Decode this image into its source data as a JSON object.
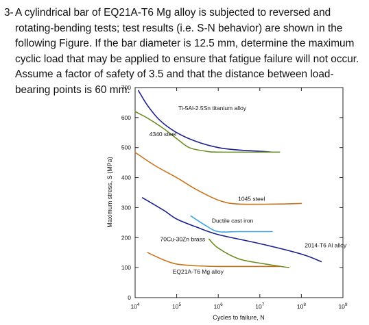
{
  "problem": {
    "number": "3-",
    "text": "A cylindrical bar of EQ21A-T6 Mg alloy is subjected to reversed and rotating-bending tests; test results (i.e. S-N behavior) are shown in the following Figure. If the bar diameter is 12.5 mm, determine the maximum cyclic load that may be applied to ensure that fatigue failure will not occur. Assume a factor of safety of 3.5 and that the distance between load-bearing points is 60 mm."
  },
  "chart_data": {
    "type": "line",
    "title": "",
    "xlabel": "Cycles to failure, N",
    "ylabel": "Maximum stress, S (MPa)",
    "x_scale": "log",
    "xlim": [
      10000,
      1000000000
    ],
    "ylim": [
      0,
      700
    ],
    "x_ticks": [
      {
        "value": 10000,
        "base": "10",
        "exp": "4"
      },
      {
        "value": 100000,
        "base": "10",
        "exp": "5"
      },
      {
        "value": 1000000,
        "base": "10",
        "exp": "6"
      },
      {
        "value": 10000000,
        "base": "10",
        "exp": "7"
      },
      {
        "value": 100000000,
        "base": "10",
        "exp": "8"
      },
      {
        "value": 1000000000,
        "base": "10",
        "exp": "9"
      }
    ],
    "y_ticks": [
      "0",
      "100",
      "200",
      "300",
      "400",
      "500",
      "600",
      "700"
    ],
    "y_tick_values": [
      0,
      100,
      200,
      300,
      400,
      500,
      600,
      700
    ],
    "grid": false,
    "series": [
      {
        "name": "Ti-5Al-2.5Sn titanium alloy",
        "color": "#1a1f8c",
        "x": [
          12000,
          20000,
          40000,
          100000,
          300000,
          1000000,
          3000000,
          10000000,
          20000000
        ],
        "y": [
          690,
          640,
          590,
          550,
          520,
          500,
          492,
          488,
          485
        ]
      },
      {
        "name": "4340 steel",
        "color": "#6b8e23",
        "x": [
          10000,
          20000,
          50000,
          100000,
          200000,
          500000,
          1000000,
          10000000,
          30000000
        ],
        "y": [
          620,
          598,
          562,
          530,
          500,
          488,
          485,
          485,
          485
        ]
      },
      {
        "name": "1045 steel",
        "color": "#c8731a",
        "x": [
          10000,
          30000,
          100000,
          300000,
          1000000,
          3000000,
          30000000,
          100000000
        ],
        "y": [
          484,
          440,
          400,
          360,
          325,
          312,
          312,
          314
        ]
      },
      {
        "name": "2014-T6 Al alloy",
        "color": "#1a1f8c",
        "x": [
          15000,
          50000,
          100000,
          300000,
          1000000,
          10000000,
          100000000,
          300000000
        ],
        "y": [
          333,
          290,
          262,
          235,
          210,
          180,
          145,
          120
        ]
      },
      {
        "name": "Ductile cast iron",
        "color": "#3aa6e0",
        "x": [
          220000,
          500000,
          1000000,
          3000000,
          10000000,
          20000000
        ],
        "y": [
          272,
          240,
          220,
          220,
          220,
          220
        ]
      },
      {
        "name": "70Cu-30Zn brass",
        "color": "#6b8e23",
        "x": [
          600000,
          1000000,
          3000000,
          10000000,
          50000000
        ],
        "y": [
          195,
          165,
          130,
          115,
          100
        ]
      },
      {
        "name": "EQ21A-T6 Mg alloy",
        "color": "#c8731a",
        "x": [
          20000,
          50000,
          100000,
          300000,
          1000000,
          10000000,
          30000000
        ],
        "y": [
          150,
          125,
          112,
          106,
          104,
          104,
          104
        ]
      }
    ],
    "annotations": [
      {
        "text": "Ti-5Al-2.5Sn titanium alloy",
        "x": 110000,
        "y": 625
      },
      {
        "text": "4340 steel",
        "x": 22000,
        "y": 538
      },
      {
        "text": "1045 steel",
        "x": 3000000,
        "y": 323
      },
      {
        "text": "Ductile cast iron",
        "x": 700000,
        "y": 250
      },
      {
        "text": "70Cu-30Zn brass",
        "x": 40000,
        "y": 188
      },
      {
        "text": "2014-T6 Al alloy",
        "x": 120000000,
        "y": 168
      },
      {
        "text": "EQ21A-T6 Mg alloy",
        "x": 80000,
        "y": 80
      }
    ]
  }
}
